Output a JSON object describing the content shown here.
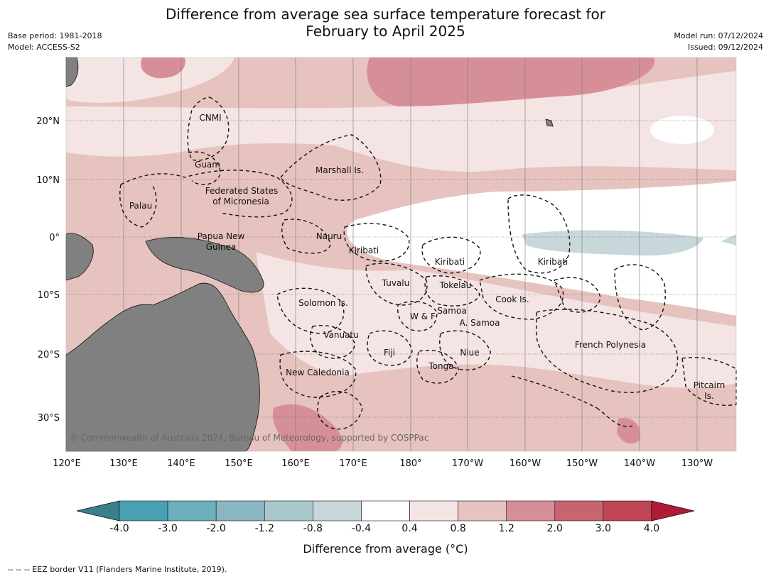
{
  "title_line1": "Difference from average sea surface temperature forecast for",
  "title_line2": "February to April 2025",
  "base_period": "Base period: 1981-2018",
  "model": "Model: ACCESS-S2",
  "model_run": "Model run: 07/12/2024",
  "issued": "Issued: 09/12/2024",
  "lat_ticks": [
    "20°N",
    "10°N",
    "0°",
    "10°S",
    "20°S",
    "30°S"
  ],
  "lon_ticks": [
    "120°E",
    "130°E",
    "140°E",
    "150°E",
    "160°E",
    "170°E",
    "180°",
    "170°W",
    "160°W",
    "150°W",
    "140°W",
    "130°W"
  ],
  "labels": {
    "cnmi": "CNMI",
    "guam": "Guam",
    "marshall": "Marshall Is.",
    "fsm1": "Federated States",
    "fsm2": "of Micronesia",
    "palau": "Palau",
    "png1": "Papua New",
    "png2": "Guinea",
    "nauru": "Nauru",
    "kiribati1": "Kiribati",
    "kiribati2": "Kiribati",
    "kiribati3": "Kiribati",
    "tuvalu": "Tuvalu",
    "tokelau": "Tokelau",
    "cook": "Cook Is.",
    "solomon": "Solomon Is.",
    "wf": "W & F",
    "samoa": "Samoa",
    "asamoa": "A. Samoa",
    "vanuatu": "Vanuatu",
    "fiji": "Fiji",
    "niue": "Niue",
    "tonga": "Tonga",
    "newcal": "New Caledonia",
    "frpoly": "French Polynesia",
    "pitcairn1": "Pitcairn",
    "pitcairn2": "Is."
  },
  "copyright": "© Commonwealth of Australia 2024, Bureau of Meteorology, supported by COSPPac",
  "colorbar": {
    "ticks": [
      "-4.0",
      "-3.0",
      "-2.0",
      "-1.2",
      "-0.8",
      "-0.4",
      "0.4",
      "0.8",
      "1.2",
      "2.0",
      "3.0",
      "4.0"
    ],
    "colors": [
      "#3a7f8c",
      "#4aa0b3",
      "#6cafbd",
      "#8ab6c2",
      "#a9c8cc",
      "#c8d8da",
      "#ffffff",
      "#f4e4e3",
      "#e6c3bf",
      "#d68f98",
      "#c7656f",
      "#c04555",
      "#b01a37"
    ],
    "label": "Difference from average (°C)"
  },
  "footer": "--  --  -- EEZ border V11 (Flanders Marine Institute, 2019)."
}
